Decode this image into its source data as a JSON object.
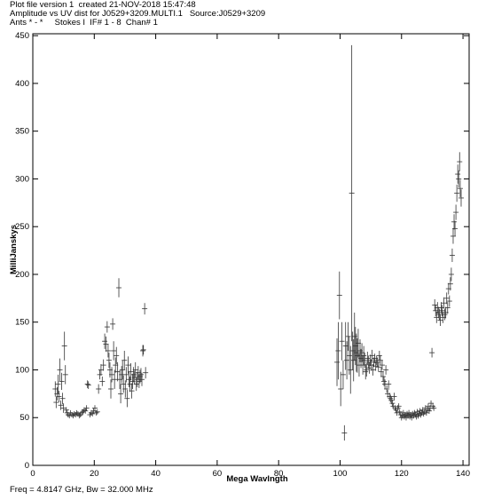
{
  "header": {
    "line1": "Plot file version 1  created 21-NOV-2018 15:47:48",
    "line2": "Amplitude vs UV dist for J0529+3209.MULTI.1   Source:J0529+3209",
    "line3": "Ants * - *     Stokes I  IF# 1 - 8  Chan# 1"
  },
  "footer": "Freq = 4.8147 GHz, Bw = 32.000 MHz",
  "chart_data": {
    "type": "scatter",
    "marker": "cross-with-error-bars",
    "xlabel": "Mega Wavlngth",
    "ylabel": "MilliJanskys",
    "xlim": [
      0,
      142
    ],
    "ylim": [
      0,
      452
    ],
    "xticks": [
      0,
      20,
      40,
      60,
      80,
      100,
      120,
      140
    ],
    "yticks": [
      0,
      50,
      100,
      150,
      200,
      250,
      300,
      350,
      400,
      450
    ],
    "grid": false,
    "points": [
      [
        7.3,
        80,
        8
      ],
      [
        7.6,
        66,
        6
      ],
      [
        7.9,
        75,
        7
      ],
      [
        8.2,
        85,
        10
      ],
      [
        8.5,
        72,
        6
      ],
      [
        8.8,
        100,
        12
      ],
      [
        9.1,
        63,
        5
      ],
      [
        9.4,
        88,
        9
      ],
      [
        9.7,
        70,
        6
      ],
      [
        10.0,
        60,
        5
      ],
      [
        10.3,
        125,
        15
      ],
      [
        10.6,
        95,
        10
      ],
      [
        10.9,
        58,
        3
      ],
      [
        11.2,
        55,
        2
      ],
      [
        11.5,
        53,
        2
      ],
      [
        11.9,
        52,
        2
      ],
      [
        12.3,
        55,
        2
      ],
      [
        12.7,
        53,
        2
      ],
      [
        13.1,
        52,
        2
      ],
      [
        13.5,
        54,
        2
      ],
      [
        13.9,
        53,
        2
      ],
      [
        14.3,
        55,
        2
      ],
      [
        14.7,
        54,
        2
      ],
      [
        15.1,
        52,
        2
      ],
      [
        15.5,
        53,
        2
      ],
      [
        15.9,
        55,
        2
      ],
      [
        16.3,
        56,
        2
      ],
      [
        16.7,
        58,
        2
      ],
      [
        17.1,
        57,
        2
      ],
      [
        17.5,
        60,
        3
      ],
      [
        17.8,
        85,
        4
      ],
      [
        18.1,
        84,
        4
      ],
      [
        18.6,
        53,
        2
      ],
      [
        19.0,
        55,
        2
      ],
      [
        19.4,
        54,
        2
      ],
      [
        19.8,
        57,
        2
      ],
      [
        20.2,
        60,
        3
      ],
      [
        20.6,
        55,
        2
      ],
      [
        21.0,
        56,
        2
      ],
      [
        21.4,
        80,
        5
      ],
      [
        21.8,
        95,
        5
      ],
      [
        22.2,
        100,
        6
      ],
      [
        22.6,
        88,
        5
      ],
      [
        23.0,
        105,
        6
      ],
      [
        23.4,
        130,
        8
      ],
      [
        23.8,
        127,
        8
      ],
      [
        24.2,
        145,
        6
      ],
      [
        24.5,
        120,
        7
      ],
      [
        24.8,
        110,
        8
      ],
      [
        25.1,
        100,
        8
      ],
      [
        25.4,
        80,
        10
      ],
      [
        25.7,
        95,
        8
      ],
      [
        26.0,
        148,
        6
      ],
      [
        26.3,
        120,
        10
      ],
      [
        26.6,
        90,
        10
      ],
      [
        26.9,
        105,
        8
      ],
      [
        27.2,
        115,
        9
      ],
      [
        27.6,
        98,
        10
      ],
      [
        28.0,
        186,
        10
      ],
      [
        28.3,
        90,
        10
      ],
      [
        28.6,
        75,
        10
      ],
      [
        28.9,
        95,
        9
      ],
      [
        29.2,
        100,
        10
      ],
      [
        29.5,
        85,
        9
      ],
      [
        29.8,
        110,
        10
      ],
      [
        30.1,
        80,
        9
      ],
      [
        30.4,
        95,
        8
      ],
      [
        30.7,
        70,
        9
      ],
      [
        31.0,
        105,
        9
      ],
      [
        31.3,
        90,
        8
      ],
      [
        31.6,
        85,
        8
      ],
      [
        31.9,
        98,
        9
      ],
      [
        32.2,
        78,
        8
      ],
      [
        32.5,
        88,
        8
      ],
      [
        32.8,
        95,
        8
      ],
      [
        33.1,
        92,
        7
      ],
      [
        33.4,
        100,
        8
      ],
      [
        33.7,
        85,
        7
      ],
      [
        34.0,
        90,
        8
      ],
      [
        34.3,
        97,
        7
      ],
      [
        34.6,
        88,
        7
      ],
      [
        34.9,
        93,
        7
      ],
      [
        35.2,
        95,
        7
      ],
      [
        35.5,
        90,
        7
      ],
      [
        35.8,
        120,
        6
      ],
      [
        36.0,
        121,
        5
      ],
      [
        36.4,
        164,
        6
      ],
      [
        36.7,
        97,
        6
      ],
      [
        99.0,
        108,
        25
      ],
      [
        99.4,
        120,
        30
      ],
      [
        99.8,
        178,
        25
      ],
      [
        100.2,
        80,
        18
      ],
      [
        100.6,
        130,
        20
      ],
      [
        101.0,
        95,
        15
      ],
      [
        101.4,
        34,
        8
      ],
      [
        101.8,
        125,
        25
      ],
      [
        102.2,
        110,
        20
      ],
      [
        102.6,
        135,
        15
      ],
      [
        103.0,
        115,
        20
      ],
      [
        103.4,
        100,
        25
      ],
      [
        103.8,
        285,
        155
      ],
      [
        104.1,
        120,
        20
      ],
      [
        104.4,
        110,
        22
      ],
      [
        104.7,
        135,
        25
      ],
      [
        105.0,
        125,
        20
      ],
      [
        105.3,
        118,
        20
      ],
      [
        105.6,
        115,
        18
      ],
      [
        105.9,
        128,
        15
      ],
      [
        106.2,
        105,
        12
      ],
      [
        106.5,
        120,
        12
      ],
      [
        106.8,
        112,
        10
      ],
      [
        107.1,
        118,
        10
      ],
      [
        107.4,
        105,
        10
      ],
      [
        107.7,
        115,
        10
      ],
      [
        108.0,
        110,
        8
      ],
      [
        108.3,
        98,
        8
      ],
      [
        108.6,
        100,
        7
      ],
      [
        108.9,
        112,
        7
      ],
      [
        109.2,
        108,
        7
      ],
      [
        109.5,
        102,
        6
      ],
      [
        109.8,
        110,
        6
      ],
      [
        110.1,
        105,
        6
      ],
      [
        110.4,
        115,
        6
      ],
      [
        110.7,
        100,
        6
      ],
      [
        111.0,
        108,
        5
      ],
      [
        111.3,
        112,
        5
      ],
      [
        111.6,
        104,
        5
      ],
      [
        111.9,
        110,
        5
      ],
      [
        112.2,
        108,
        5
      ],
      [
        112.5,
        103,
        5
      ],
      [
        112.8,
        115,
        5
      ],
      [
        113.1,
        110,
        5
      ],
      [
        113.4,
        98,
        5
      ],
      [
        113.7,
        105,
        5
      ],
      [
        114.0,
        93,
        5
      ],
      [
        114.3,
        88,
        5
      ],
      [
        114.6,
        85,
        5
      ],
      [
        114.9,
        100,
        5
      ],
      [
        115.2,
        80,
        4
      ],
      [
        115.5,
        75,
        4
      ],
      [
        115.8,
        85,
        4
      ],
      [
        116.1,
        72,
        4
      ],
      [
        116.4,
        70,
        4
      ],
      [
        116.7,
        68,
        4
      ],
      [
        117.0,
        65,
        4
      ],
      [
        117.3,
        62,
        3
      ],
      [
        117.6,
        72,
        4
      ],
      [
        117.9,
        60,
        3
      ],
      [
        118.2,
        58,
        3
      ],
      [
        118.5,
        55,
        3
      ],
      [
        118.8,
        60,
        3
      ],
      [
        119.1,
        62,
        3
      ],
      [
        119.4,
        56,
        3
      ],
      [
        119.7,
        53,
        3
      ],
      [
        120.0,
        50,
        3
      ],
      [
        120.3,
        52,
        3
      ],
      [
        120.6,
        55,
        3
      ],
      [
        120.9,
        51,
        3
      ],
      [
        121.2,
        53,
        3
      ],
      [
        121.5,
        50,
        3
      ],
      [
        121.8,
        54,
        3
      ],
      [
        122.1,
        52,
        3
      ],
      [
        122.4,
        55,
        3
      ],
      [
        122.7,
        51,
        3
      ],
      [
        123.0,
        53,
        3
      ],
      [
        123.3,
        50,
        3
      ],
      [
        123.6,
        54,
        3
      ],
      [
        123.9,
        52,
        3
      ],
      [
        124.2,
        55,
        3
      ],
      [
        124.5,
        53,
        3
      ],
      [
        124.8,
        51,
        3
      ],
      [
        125.1,
        56,
        3
      ],
      [
        125.4,
        52,
        3
      ],
      [
        125.7,
        54,
        3
      ],
      [
        126.0,
        57,
        3
      ],
      [
        126.3,
        53,
        3
      ],
      [
        126.6,
        55,
        3
      ],
      [
        126.9,
        58,
        3
      ],
      [
        127.2,
        54,
        3
      ],
      [
        127.5,
        56,
        3
      ],
      [
        127.8,
        60,
        3
      ],
      [
        128.1,
        55,
        3
      ],
      [
        128.4,
        58,
        3
      ],
      [
        128.7,
        62,
        3
      ],
      [
        129.0,
        57,
        3
      ],
      [
        129.3,
        60,
        3
      ],
      [
        129.6,
        65,
        3
      ],
      [
        129.9,
        118,
        5
      ],
      [
        130.2,
        62,
        3
      ],
      [
        130.5,
        60,
        3
      ],
      [
        130.8,
        168,
        6
      ],
      [
        131.1,
        162,
        6
      ],
      [
        131.4,
        155,
        6
      ],
      [
        131.7,
        165,
        6
      ],
      [
        132.0,
        160,
        6
      ],
      [
        132.3,
        158,
        6
      ],
      [
        132.6,
        152,
        6
      ],
      [
        132.9,
        165,
        6
      ],
      [
        133.2,
        162,
        6
      ],
      [
        133.5,
        155,
        6
      ],
      [
        133.8,
        170,
        6
      ],
      [
        134.1,
        158,
        6
      ],
      [
        134.4,
        160,
        6
      ],
      [
        134.7,
        175,
        6
      ],
      [
        135.0,
        165,
        6
      ],
      [
        135.3,
        185,
        6
      ],
      [
        135.6,
        172,
        6
      ],
      [
        135.9,
        190,
        7
      ],
      [
        136.2,
        200,
        7
      ],
      [
        136.5,
        220,
        7
      ],
      [
        136.8,
        240,
        8
      ],
      [
        137.1,
        255,
        8
      ],
      [
        137.4,
        248,
        8
      ],
      [
        137.7,
        265,
        8
      ],
      [
        138.0,
        285,
        9
      ],
      [
        138.3,
        305,
        10
      ],
      [
        138.6,
        300,
        9
      ],
      [
        138.9,
        318,
        10
      ],
      [
        139.1,
        290,
        9
      ],
      [
        139.4,
        280,
        9
      ]
    ]
  }
}
